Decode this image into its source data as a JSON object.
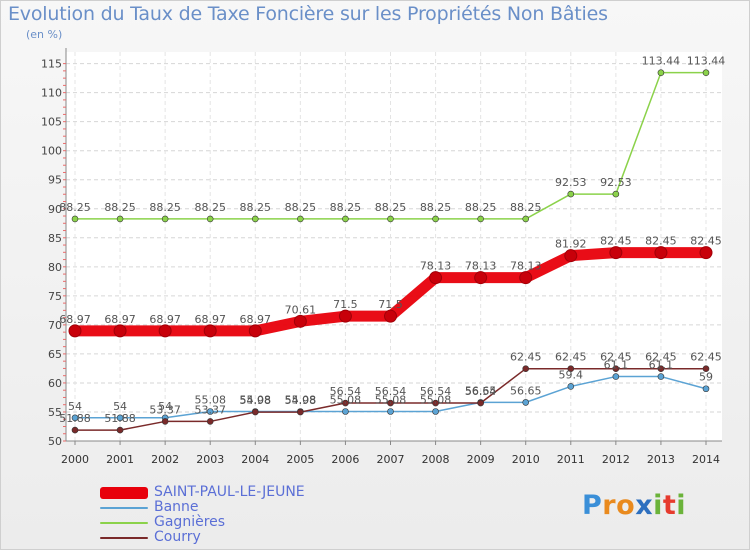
{
  "title": "Evolution du Taux de Taxe Foncière sur les Propriétés Non Bâties",
  "unit_label": "(en %)",
  "logo_text": "Proxiti",
  "chart_data": {
    "type": "line",
    "title": "Evolution du Taux de Taxe Foncière sur les Propriétés Non Bâties",
    "ylabel": "(en %)",
    "xlabel": "",
    "ylim": [
      50,
      117
    ],
    "yticks": [
      50,
      55,
      60,
      65,
      70,
      75,
      80,
      85,
      90,
      95,
      100,
      105,
      110,
      115
    ],
    "categories": [
      "2000",
      "2001",
      "2002",
      "2003",
      "2004",
      "2005",
      "2006",
      "2007",
      "2008",
      "2009",
      "2010",
      "2011",
      "2012",
      "2013",
      "2014"
    ],
    "series": [
      {
        "name": "SAINT-PAUL-LE-JEUNE",
        "color": "#e8000b",
        "values": [
          68.97,
          68.97,
          68.97,
          68.97,
          68.97,
          70.61,
          71.5,
          71.5,
          78.13,
          78.13,
          78.13,
          81.92,
          82.45,
          82.45,
          82.45
        ],
        "labels": [
          "68.97",
          "68.97",
          "68.97",
          "68.97",
          "68.97",
          "70.61",
          "71.5",
          "71.5",
          "78.13",
          "78.13",
          "78.13",
          "81.92",
          "82.45",
          "82.45",
          "82.45"
        ]
      },
      {
        "name": "Banne",
        "color": "#5ba3d4",
        "values": [
          54,
          54,
          54,
          55.08,
          55.08,
          55.08,
          55.08,
          55.08,
          55.08,
          56.65,
          56.65,
          59.4,
          61.1,
          61.1,
          59
        ],
        "labels": [
          "54",
          "54",
          "54",
          "55.08",
          "55.08",
          "55.08",
          "55.08",
          "55.08",
          "55.08",
          "56.65",
          "56.65",
          "59.4",
          "61.1",
          "61.1",
          "59"
        ]
      },
      {
        "name": "Gagnières",
        "color": "#8bd24a",
        "values": [
          88.25,
          88.25,
          88.25,
          88.25,
          88.25,
          88.25,
          88.25,
          88.25,
          88.25,
          88.25,
          88.25,
          92.53,
          92.53,
          113.44,
          113.44
        ],
        "labels": [
          "88.25",
          "88.25",
          "88.25",
          "88.25",
          "88.25",
          "88.25",
          "88.25",
          "88.25",
          "88.25",
          "88.25",
          "88.25",
          "92.53",
          "92.53",
          "113.44",
          "113.44"
        ]
      },
      {
        "name": "Courry",
        "color": "#7a2a2a",
        "values": [
          51.88,
          51.88,
          53.37,
          53.37,
          54.98,
          54.98,
          56.54,
          56.54,
          56.54,
          56.54,
          62.45,
          62.45,
          62.45,
          62.45,
          62.45
        ],
        "labels": [
          "51.88",
          "51.88",
          "53.37",
          "53.37",
          "54.98",
          "54.98",
          "56.54",
          "56.54",
          "56.54",
          "56.54",
          "62.45",
          "62.45",
          "62.45",
          "62.45",
          "62.45"
        ]
      }
    ],
    "legend_position": "bottom-left"
  }
}
